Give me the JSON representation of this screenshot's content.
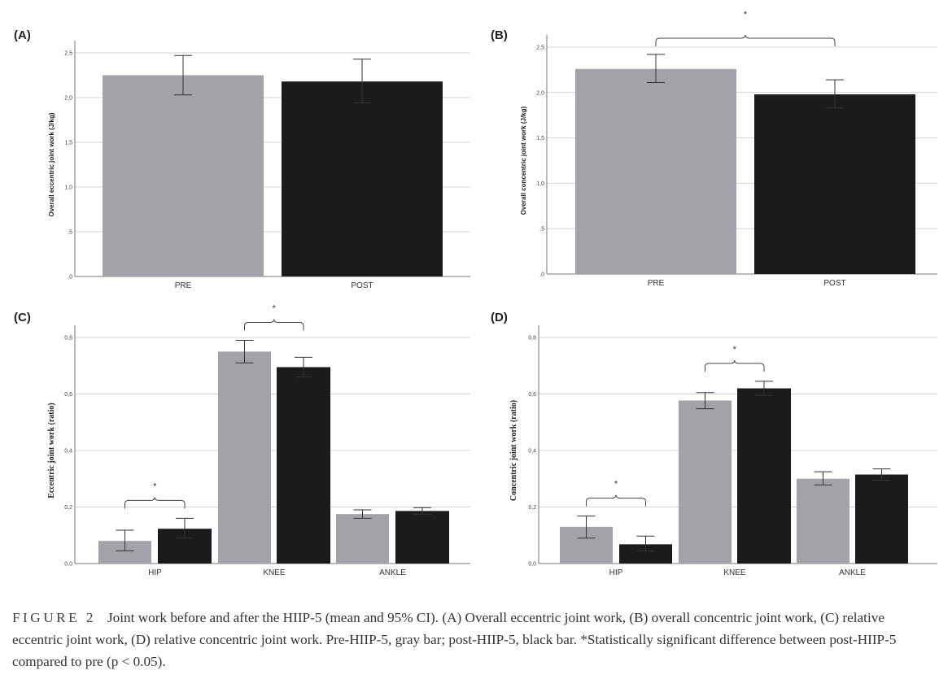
{
  "caption": {
    "label": "FIGURE 2",
    "text": "Joint work before and after the HIIP-5 (mean and 95% CI). (A) Overall eccentric joint work, (B) overall concentric joint work, (C) relative eccentric joint work, (D) relative concentric joint work. Pre-HIIP-5, gray bar; post-HIIP-5, black bar. *Statistically significant difference between post-HIIP-5 compared to pre (p < 0.05)."
  },
  "colors": {
    "pre": "#a2a3a8",
    "post": "#1c1a1c",
    "grid": "#d4d4d4",
    "axis": "#777777"
  },
  "chart_data": [
    {
      "panel": "(A)",
      "type": "bar",
      "ylabel": "Overall eccentric joint work (J/kg)",
      "ylim": [
        0,
        2.5
      ],
      "yticks": [
        {
          "v": 0,
          "label": ",0"
        },
        {
          "v": 0.5,
          "label": ",5"
        },
        {
          "v": 1.0,
          "label": "1,0"
        },
        {
          "v": 1.5,
          "label": "1,5"
        },
        {
          "v": 2.0,
          "label": "2,0"
        },
        {
          "v": 2.5,
          "label": "2,5"
        }
      ],
      "categories": [
        "PRE",
        "POST"
      ],
      "series": [
        {
          "values": [
            2.25,
            2.18
          ],
          "ci_low": [
            2.03,
            1.94
          ],
          "ci_high": [
            2.47,
            2.43
          ]
        }
      ],
      "significance": [],
      "grid": true
    },
    {
      "panel": "(B)",
      "type": "bar",
      "ylabel": "Overall concentric joint work (J/kg)",
      "ylim": [
        0,
        2.5
      ],
      "yticks": [
        {
          "v": 0,
          "label": ",0"
        },
        {
          "v": 0.5,
          "label": ",5"
        },
        {
          "v": 1.0,
          "label": "1,0"
        },
        {
          "v": 1.5,
          "label": "1,5"
        },
        {
          "v": 2.0,
          "label": "2,0"
        },
        {
          "v": 2.5,
          "label": "2,5"
        }
      ],
      "categories": [
        "PRE",
        "POST"
      ],
      "series": [
        {
          "values": [
            2.26,
            1.98
          ],
          "ci_low": [
            2.11,
            1.83
          ],
          "ci_high": [
            2.42,
            2.14
          ]
        }
      ],
      "significance": [
        {
          "from": 0,
          "to": 1,
          "label": "*"
        }
      ],
      "grid": true
    },
    {
      "panel": "(C)",
      "type": "bar",
      "ylabel": "Eccentric joint work (ratio)",
      "ylim": [
        0,
        0.8
      ],
      "yticks": [
        {
          "v": 0,
          "label": "0,0"
        },
        {
          "v": 0.2,
          "label": "0,2"
        },
        {
          "v": 0.4,
          "label": "0,4"
        },
        {
          "v": 0.6,
          "label": "0,6"
        },
        {
          "v": 0.8,
          "label": "0,8"
        }
      ],
      "categories": [
        "HIP",
        "KNEE",
        "ANKLE"
      ],
      "series": [
        {
          "values": [
            0.08,
            0.75,
            0.175
          ],
          "ci_low": [
            0.045,
            0.71,
            0.16
          ],
          "ci_high": [
            0.118,
            0.79,
            0.19
          ]
        },
        {
          "values": [
            0.123,
            0.695,
            0.186
          ],
          "ci_low": [
            0.09,
            0.66,
            0.175
          ],
          "ci_high": [
            0.16,
            0.73,
            0.198
          ]
        }
      ],
      "significance": [
        {
          "category": 0,
          "label": "*"
        },
        {
          "category": 1,
          "label": "*"
        }
      ],
      "grid": true
    },
    {
      "panel": "(D)",
      "type": "bar",
      "ylabel": "Concentric joint work (ratio)",
      "ylim": [
        0,
        0.8
      ],
      "yticks": [
        {
          "v": 0,
          "label": "0,0"
        },
        {
          "v": 0.2,
          "label": "0,2"
        },
        {
          "v": 0.4,
          "label": "0,4"
        },
        {
          "v": 0.6,
          "label": "0,6"
        },
        {
          "v": 0.8,
          "label": "0,8"
        }
      ],
      "categories": [
        "HIP",
        "KNEE",
        "ANKLE"
      ],
      "series": [
        {
          "values": [
            0.13,
            0.577,
            0.3
          ],
          "ci_low": [
            0.09,
            0.548,
            0.278
          ],
          "ci_high": [
            0.168,
            0.605,
            0.325
          ]
        },
        {
          "values": [
            0.068,
            0.62,
            0.315
          ],
          "ci_low": [
            0.045,
            0.595,
            0.295
          ],
          "ci_high": [
            0.097,
            0.645,
            0.335
          ]
        }
      ],
      "significance": [
        {
          "category": 0,
          "label": "*"
        },
        {
          "category": 1,
          "label": "*"
        }
      ],
      "grid": true
    }
  ]
}
